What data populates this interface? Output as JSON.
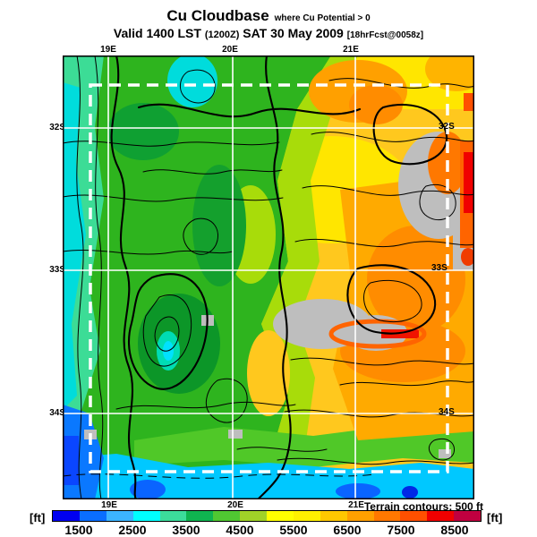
{
  "header": {
    "title": "Cu Cloudbase",
    "title_note": "where Cu Potential > 0",
    "valid_prefix": "Valid 1400 LST",
    "valid_zulu": "(1200Z)",
    "valid_date": "SAT 30 May 2009",
    "valid_fcst": "[18hrFcst@0058z]"
  },
  "map": {
    "lon_labels_top": [
      "19E",
      "20E",
      "21E"
    ],
    "lon_labels_bottom": [
      "19E",
      "20E",
      "21E"
    ],
    "lat_labels_left": [
      "32S",
      "33S",
      "34S"
    ],
    "lat_labels_right": [
      "32S",
      "33S",
      "34S"
    ],
    "terrain_note": "Terrain contours: 500 ft"
  },
  "colorbar": {
    "unit_left": "[ft]",
    "unit_right": "[ft]",
    "ticks": [
      "1500",
      "2500",
      "3500",
      "4500",
      "5500",
      "6500",
      "7500",
      "8500"
    ],
    "colors": [
      "#0000f0",
      "#0a6eff",
      "#3cb4ff",
      "#00ffff",
      "#3cdc9b",
      "#0fb450",
      "#50c832",
      "#a0d228",
      "#ffff00",
      "#fff000",
      "#ffc800",
      "#ffa000",
      "#ff7800",
      "#ff5000",
      "#f00000",
      "#c00040"
    ],
    "band_width_ft": 500,
    "range_ft": [
      1000,
      9000
    ]
  },
  "chart_data": {
    "type": "heatmap",
    "title": "Cu Cloudbase where Cu Potential > 0",
    "valid": "1400 LST (1200Z) SAT 30 May 2009",
    "forecast": "18hrFcst@0058z",
    "units": "ft",
    "scale_ticks": [
      1500,
      2500,
      3500,
      4500,
      5500,
      6500,
      7500,
      8500
    ],
    "lon_gridlines": [
      "19E",
      "20E",
      "21E"
    ],
    "lat_gridlines": [
      "32S",
      "33S",
      "34S"
    ],
    "terrain_contour_interval_ft": 500
  }
}
